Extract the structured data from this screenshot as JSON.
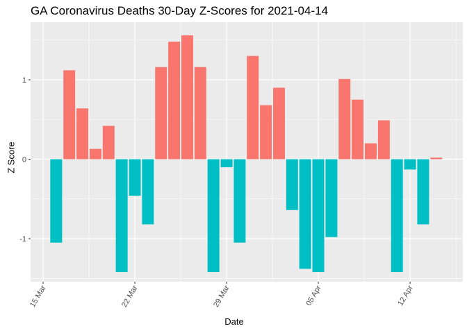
{
  "chart_data": {
    "type": "bar",
    "title": "GA Coronavirus Deaths 30-Day Z-Scores for 2021-04-14",
    "xlabel": "Date",
    "ylabel": "Z Score",
    "x_ticks": [
      "15 Mar",
      "22 Mar",
      "29 Mar",
      "05 Apr",
      "12 Apr"
    ],
    "y_ticks": [
      "-1",
      "0",
      "1"
    ],
    "ylim": [
      -1.6,
      1.7
    ],
    "grid": true,
    "legend": "none",
    "colors": {
      "positive": "#F8766D",
      "negative": "#00BFC4",
      "panel": "#EBEBEB",
      "grid": "#FFFFFF"
    },
    "categories": [
      "2021-03-16",
      "2021-03-17",
      "2021-03-18",
      "2021-03-19",
      "2021-03-20",
      "2021-03-21",
      "2021-03-22",
      "2021-03-23",
      "2021-03-24",
      "2021-03-25",
      "2021-03-26",
      "2021-03-27",
      "2021-03-28",
      "2021-03-29",
      "2021-03-30",
      "2021-03-31",
      "2021-04-01",
      "2021-04-02",
      "2021-04-03",
      "2021-04-04",
      "2021-04-05",
      "2021-04-06",
      "2021-04-07",
      "2021-04-08",
      "2021-04-09",
      "2021-04-10",
      "2021-04-11",
      "2021-04-12",
      "2021-04-13",
      "2021-04-14"
    ],
    "values": [
      -1.05,
      1.12,
      0.64,
      0.13,
      0.42,
      -1.42,
      -0.46,
      -0.82,
      1.16,
      1.48,
      1.56,
      1.16,
      -1.42,
      -0.1,
      -1.05,
      1.3,
      0.68,
      0.9,
      -0.64,
      -1.38,
      -1.42,
      -0.98,
      1.01,
      0.75,
      0.2,
      0.49,
      -1.42,
      -0.13,
      -0.82,
      0.02
    ]
  }
}
